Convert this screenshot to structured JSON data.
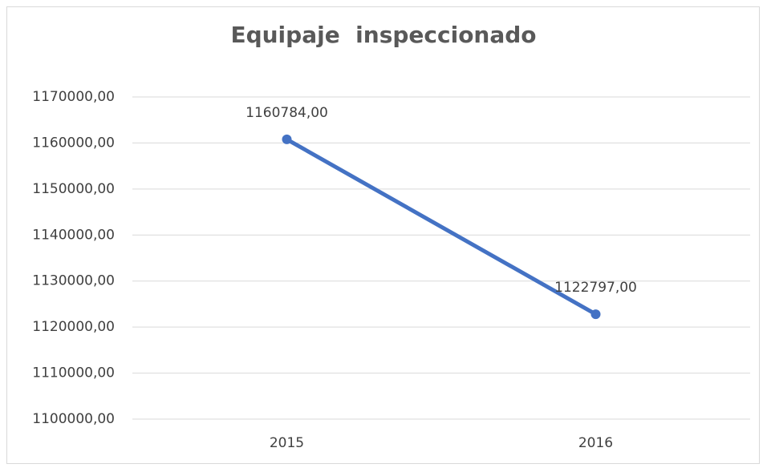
{
  "chart_data": {
    "type": "line",
    "title": "Equipaje  inspeccionado",
    "categories": [
      "2015",
      "2016"
    ],
    "values": [
      1160784,
      1122797
    ],
    "value_labels": [
      "1160784,00",
      "1122797,00"
    ],
    "color": "#4472c4",
    "ylim": [
      1100000,
      1170000
    ],
    "yticks": [
      {
        "value": 1100000,
        "label": "1100000,00"
      },
      {
        "value": 1110000,
        "label": "1110000,00"
      },
      {
        "value": 1120000,
        "label": "1120000,00"
      },
      {
        "value": 1130000,
        "label": "1130000,00"
      },
      {
        "value": 1140000,
        "label": "1140000,00"
      },
      {
        "value": 1150000,
        "label": "1150000,00"
      },
      {
        "value": 1160000,
        "label": "1160000,00"
      },
      {
        "value": 1170000,
        "label": "1170000,00"
      }
    ],
    "grid": true
  }
}
